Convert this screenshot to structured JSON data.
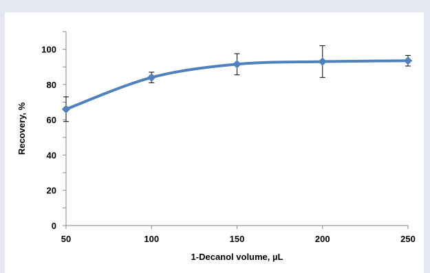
{
  "chart_data": {
    "type": "line",
    "title": "",
    "xlabel": "1-Decanol volume, µL",
    "ylabel": "Recovery, %",
    "x": [
      50,
      100,
      150,
      200,
      250
    ],
    "series": [
      {
        "values": [
          66,
          84,
          91.5,
          93,
          93.5
        ],
        "error": [
          7,
          3,
          6,
          9,
          3
        ],
        "color": "#4f81bd"
      }
    ],
    "xlim": [
      50,
      250
    ],
    "ylim": [
      0,
      100
    ],
    "x_ticks": [
      "50",
      "100",
      "150",
      "200",
      "250"
    ],
    "y_ticks": [
      "0",
      "20",
      "40",
      "60",
      "80",
      "100"
    ],
    "smooth_line": true,
    "marker": "diamond",
    "grid": false,
    "legend": "none"
  }
}
